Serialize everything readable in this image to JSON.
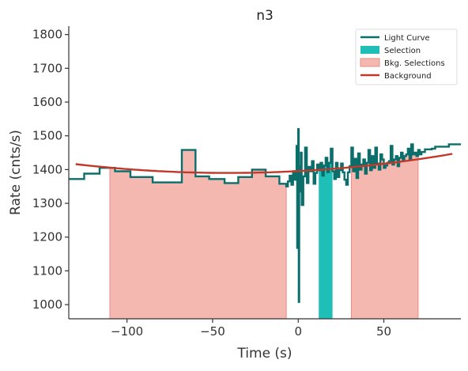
{
  "chart_data": {
    "type": "line",
    "title": "n3",
    "xlabel": "Time (s)",
    "ylabel": "Rate (cnts/s)",
    "xlim": [
      -134,
      95
    ],
    "ylim": [
      958,
      1825
    ],
    "xticks": [
      -100,
      -50,
      0,
      50
    ],
    "xtick_labels": [
      "−100",
      "−50",
      "0",
      "50"
    ],
    "yticks": [
      1000,
      1100,
      1200,
      1300,
      1400,
      1500,
      1600,
      1700,
      1800
    ],
    "ytick_labels": [
      "1000",
      "1100",
      "1200",
      "1300",
      "1400",
      "1500",
      "1600",
      "1700",
      "1800"
    ],
    "grid": false,
    "legend_position": "top-right",
    "legend": [
      {
        "label": "Light Curve",
        "kind": "line",
        "color": "#0b6e6b"
      },
      {
        "label": "Selection",
        "kind": "patch",
        "color": "#1fbfb8"
      },
      {
        "label": "Bkg. Selections",
        "kind": "patch",
        "color": "#f4b8b0",
        "edge": "#e98d80"
      },
      {
        "label": "Background",
        "kind": "line",
        "color": "#c0392b"
      }
    ],
    "colors": {
      "light_curve": "#0b6e6b",
      "selection": "#1fbfb8",
      "bkg_fill": "#f4b8b0",
      "bkg_edge": "#e98d80",
      "background": "#c0392b",
      "axes": "#333333"
    },
    "light_curve": {
      "x": [
        -134,
        -125,
        -116,
        -107,
        -98,
        -85,
        -68,
        -60,
        -52,
        -43,
        -35,
        -27,
        -19,
        -11,
        -7,
        -6,
        -5,
        -4,
        -3,
        -2,
        -1,
        -0.6,
        -0.3,
        0,
        0.3,
        0.6,
        1,
        1.5,
        2,
        3,
        4,
        5,
        6,
        7,
        8,
        9,
        10,
        11,
        12,
        13,
        14,
        15,
        16,
        17,
        18,
        19,
        20,
        21,
        22,
        23,
        24,
        25,
        26,
        27,
        28,
        29,
        30,
        31,
        32,
        33,
        34,
        35,
        36,
        37,
        38,
        39,
        40,
        41,
        42,
        43,
        44,
        45,
        46,
        47,
        48,
        49,
        50,
        51,
        52,
        53,
        54,
        55,
        56,
        57,
        58,
        59,
        60,
        61,
        62,
        63,
        64,
        65,
        66,
        67,
        68,
        69,
        70,
        71,
        72,
        74,
        78,
        80,
        88,
        95
      ],
      "y": [
        1372,
        1388,
        1405,
        1395,
        1378,
        1362,
        1458,
        1380,
        1372,
        1360,
        1378,
        1400,
        1380,
        1358,
        1350,
        1365,
        1382,
        1355,
        1395,
        1370,
        1470,
        1168,
        1462,
        1520,
        1008,
        1335,
        1410,
        1450,
        1295,
        1380,
        1465,
        1360,
        1408,
        1395,
        1425,
        1358,
        1390,
        1415,
        1398,
        1420,
        1382,
        1412,
        1435,
        1392,
        1420,
        1462,
        1395,
        1372,
        1420,
        1378,
        1398,
        1418,
        1392,
        1370,
        1355,
        1392,
        1410,
        1465,
        1395,
        1432,
        1375,
        1448,
        1400,
        1415,
        1430,
        1388,
        1420,
        1458,
        1398,
        1440,
        1405,
        1465,
        1418,
        1400,
        1445,
        1430,
        1405,
        1412,
        1420,
        1425,
        1470,
        1415,
        1430,
        1440,
        1410,
        1435,
        1450,
        1425,
        1440,
        1445,
        1462,
        1430,
        1475,
        1445,
        1450,
        1440,
        1458,
        1445,
        1452,
        1460,
        1462,
        1468,
        1475,
        1475
      ]
    },
    "selection": {
      "x_start": 12,
      "x_end": 20
    },
    "bkg_selections": [
      {
        "x_start": -110,
        "x_end": -7
      },
      {
        "x_start": 31,
        "x_end": 70
      }
    ],
    "background_poly": {
      "coefficients": [
        1395.5,
        0.27,
        0.0033
      ]
    }
  }
}
